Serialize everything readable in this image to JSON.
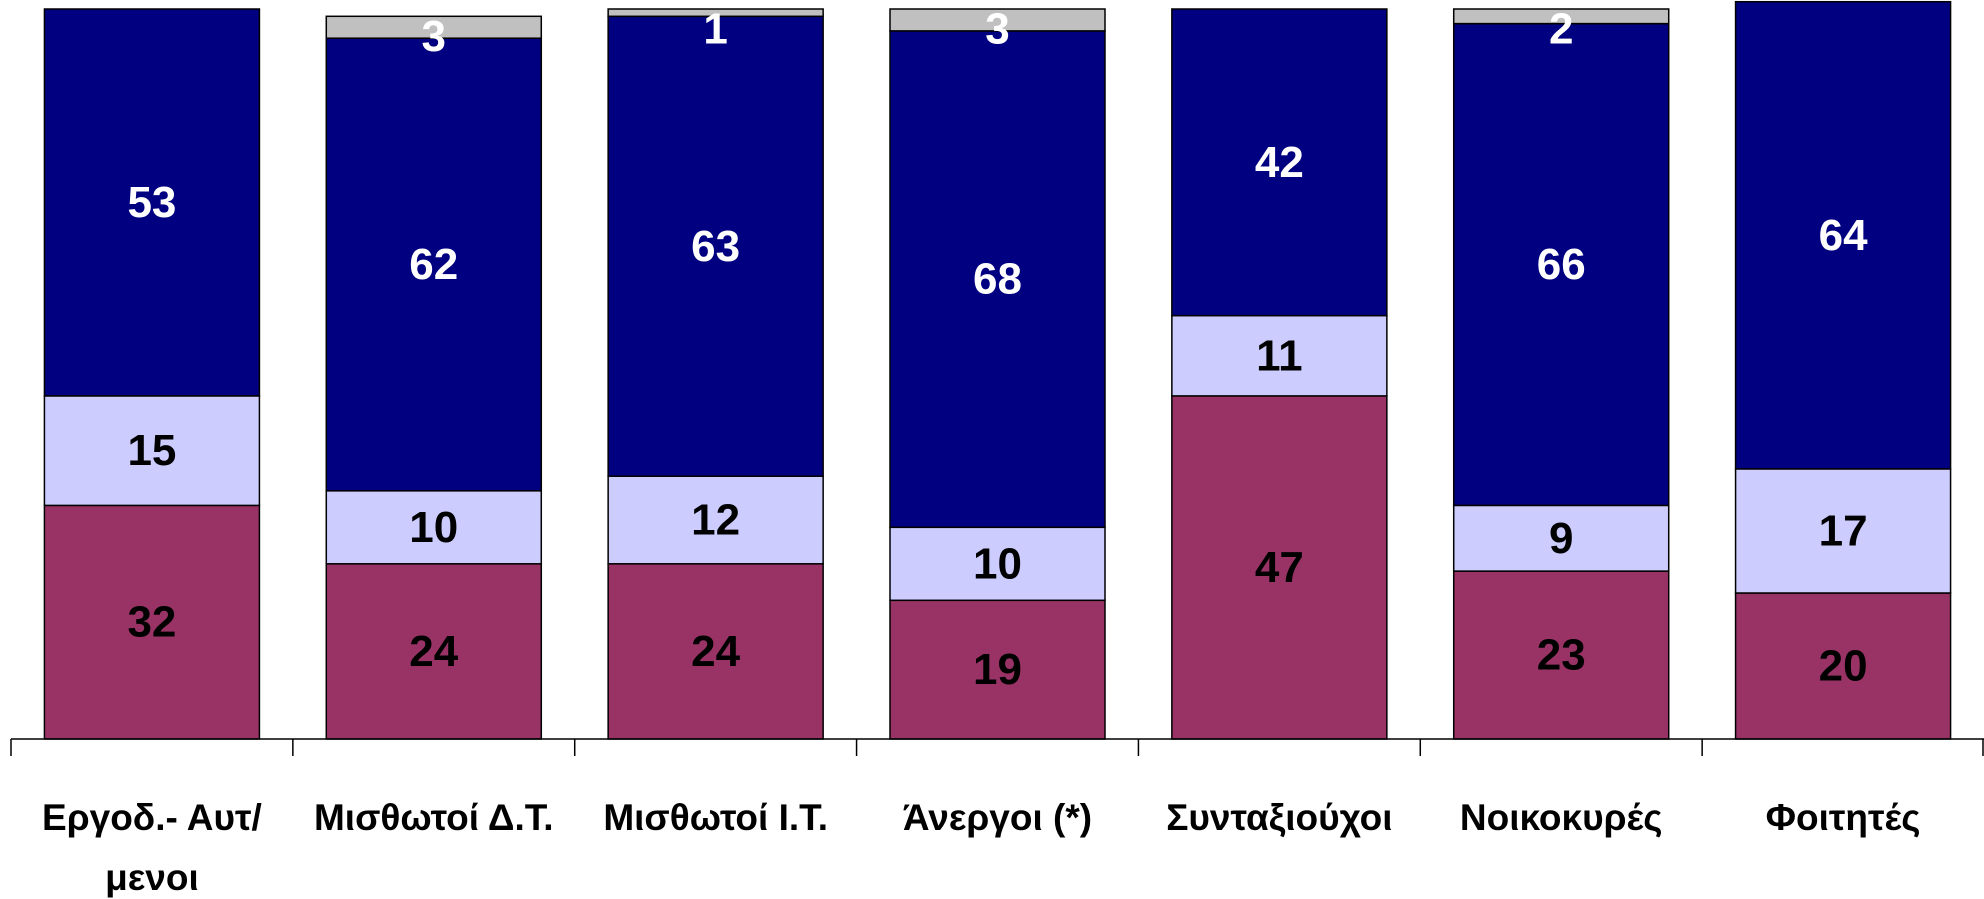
{
  "chart_data": {
    "type": "stacked_bar",
    "categories": [
      "Εργοδ.- Αυτ/μενοι",
      "Μισθωτοί Δ.Τ.",
      "Μισθωτοί Ι.Τ.",
      "Άνεργοι (*)",
      "Συνταξιούχοι",
      "Νοικοκυρές",
      "Φοιτητές"
    ],
    "series": [
      {
        "color": "#993366",
        "label_color": "#000000",
        "values": [
          32,
          24,
          24,
          19,
          47,
          23,
          20
        ]
      },
      {
        "color": "#CCCCFF",
        "label_color": "#000000",
        "values": [
          15,
          10,
          12,
          10,
          11,
          9,
          17
        ]
      },
      {
        "color": "#000080",
        "label_color": "#FFFFFF",
        "values": [
          53,
          62,
          63,
          68,
          42,
          66,
          64
        ]
      },
      {
        "color": "#C0C0C0",
        "label_color": "#FFFFFF",
        "values": [
          null,
          3,
          1,
          3,
          null,
          2,
          null
        ]
      }
    ],
    "ylim": [
      0,
      100
    ]
  }
}
